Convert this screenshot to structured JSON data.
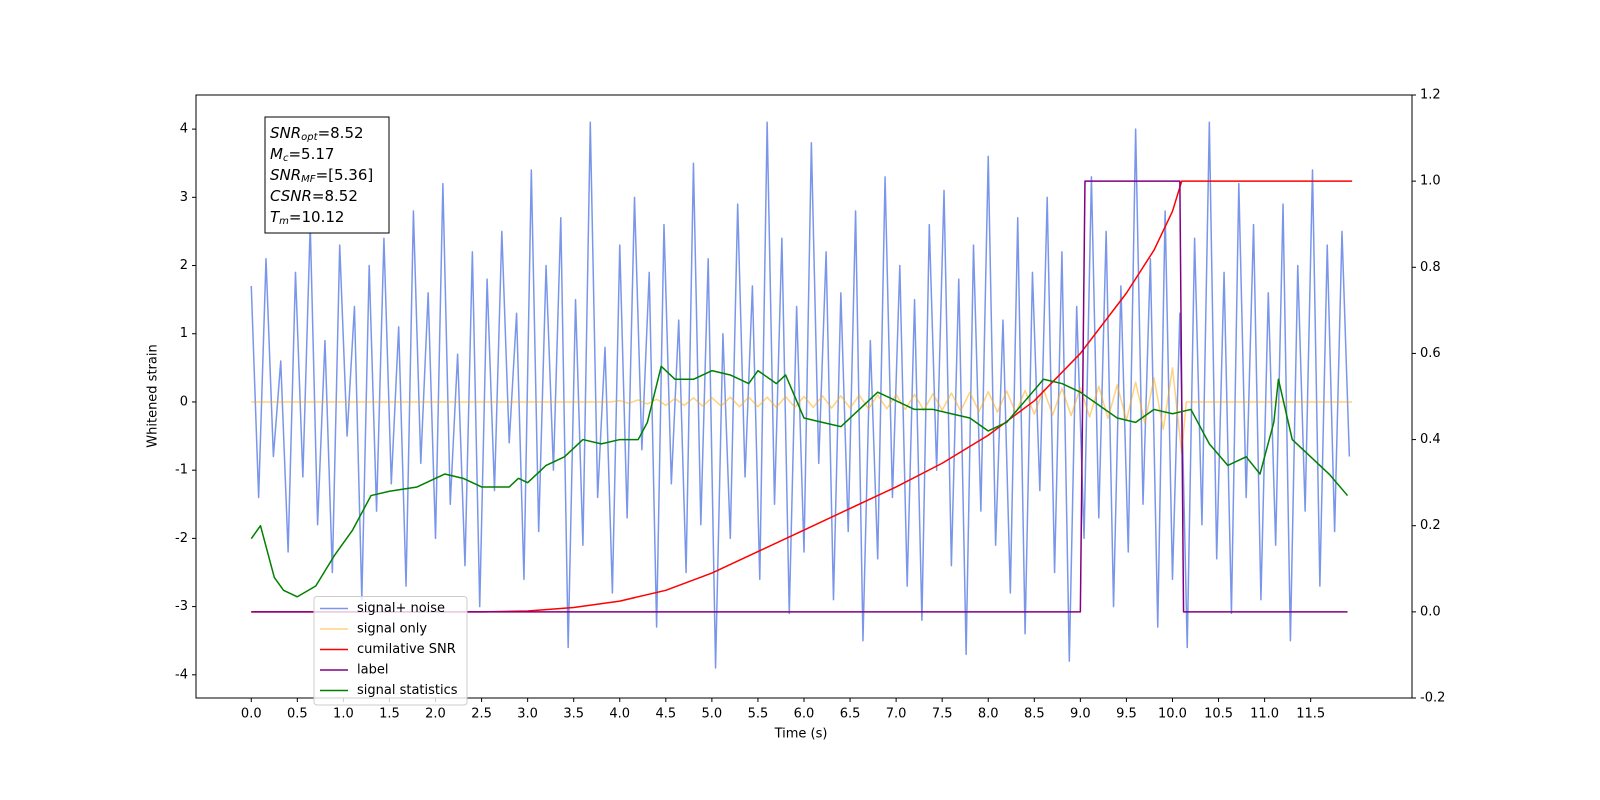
{
  "chart_data": {
    "type": "line",
    "xlabel": "Time (s)",
    "ylabel": "Whitened strain",
    "xlim": [
      -0.6,
      12.6
    ],
    "ylim": [
      -4.34,
      4.5
    ],
    "y2lim": [
      -0.2,
      1.2
    ],
    "xticks": [
      {
        "value": 0,
        "label": "0.0"
      },
      {
        "value": 0.5,
        "label": "0.5"
      },
      {
        "value": 1,
        "label": "1.0"
      },
      {
        "value": 1.5,
        "label": "1.5"
      },
      {
        "value": 2,
        "label": "2.0"
      },
      {
        "value": 2.5,
        "label": "2.5"
      },
      {
        "value": 3,
        "label": "3.0"
      },
      {
        "value": 3.5,
        "label": "3.5"
      },
      {
        "value": 4,
        "label": "4.0"
      },
      {
        "value": 4.5,
        "label": "4.5"
      },
      {
        "value": 5,
        "label": "5.0"
      },
      {
        "value": 5.5,
        "label": "5.5"
      },
      {
        "value": 6,
        "label": "6.0"
      },
      {
        "value": 6.5,
        "label": "6.5"
      },
      {
        "value": 7,
        "label": "7.0"
      },
      {
        "value": 7.5,
        "label": "7.5"
      },
      {
        "value": 8,
        "label": "8.0"
      },
      {
        "value": 8.5,
        "label": "8.5"
      },
      {
        "value": 9,
        "label": "9.0"
      },
      {
        "value": 9.5,
        "label": "9.5"
      },
      {
        "value": 10,
        "label": "10.0"
      },
      {
        "value": 10.5,
        "label": "10.5"
      },
      {
        "value": 11,
        "label": "11.0"
      },
      {
        "value": 11.5,
        "label": "11.5"
      }
    ],
    "yticks": [
      -4,
      -3,
      -2,
      -1,
      0,
      1,
      2,
      3,
      4
    ],
    "y2ticks": [
      -0.2,
      {
        "value": 0,
        "label": "0.0"
      },
      0.2,
      0.4,
      0.6,
      0.8,
      {
        "value": 1,
        "label": "1.0"
      },
      1.2
    ],
    "grid": false,
    "legend": "lower left",
    "annotation": [
      {
        "symbol": "SNR",
        "sub": "opt",
        "text": "=8.52"
      },
      {
        "symbol": "M",
        "sub": "c",
        "text": "=5.17"
      },
      {
        "symbol": "SNR",
        "sub": "MF",
        "text": "=[5.36]"
      },
      {
        "symbol": "CSNR",
        "text": "=8.52"
      },
      {
        "symbol": "T",
        "sub": "m",
        "text": "=10.12"
      }
    ],
    "series": [
      {
        "name": "signal+ noise",
        "color": "#4169e1",
        "alpha": 0.7,
        "x": [
          0,
          0.08,
          0.16,
          0.24,
          0.32,
          0.4,
          0.48,
          0.56,
          0.64,
          0.72,
          0.8,
          0.88,
          0.96,
          1.04,
          1.12,
          1.2,
          1.28,
          1.36,
          1.44,
          1.52,
          1.6,
          1.68,
          1.76,
          1.84,
          1.92,
          2,
          2.08,
          2.16,
          2.24,
          2.32,
          2.4,
          2.48,
          2.56,
          2.64,
          2.72,
          2.8,
          2.88,
          2.96,
          3.04,
          3.12,
          3.2,
          3.28,
          3.36,
          3.44,
          3.52,
          3.6,
          3.68,
          3.76,
          3.84,
          3.92,
          4,
          4.08,
          4.16,
          4.24,
          4.32,
          4.4,
          4.48,
          4.56,
          4.64,
          4.72,
          4.8,
          4.88,
          4.96,
          5.04,
          5.12,
          5.2,
          5.28,
          5.36,
          5.44,
          5.52,
          5.6,
          5.68,
          5.76,
          5.84,
          5.92,
          6,
          6.08,
          6.16,
          6.24,
          6.32,
          6.4,
          6.48,
          6.56,
          6.64,
          6.72,
          6.8,
          6.88,
          6.96,
          7.04,
          7.12,
          7.2,
          7.28,
          7.36,
          7.44,
          7.52,
          7.6,
          7.68,
          7.76,
          7.84,
          7.92,
          8,
          8.08,
          8.16,
          8.24,
          8.32,
          8.4,
          8.48,
          8.56,
          8.64,
          8.72,
          8.8,
          8.88,
          8.96,
          9.04,
          9.12,
          9.2,
          9.28,
          9.36,
          9.44,
          9.52,
          9.6,
          9.68,
          9.76,
          9.84,
          9.92,
          10,
          10.08,
          10.16,
          10.24,
          10.32,
          10.4,
          10.48,
          10.56,
          10.64,
          10.72,
          10.8,
          10.88,
          10.96,
          11.04,
          11.12,
          11.2,
          11.28,
          11.36,
          11.44,
          11.52,
          11.6,
          11.68,
          11.76,
          11.84,
          11.92
        ],
        "values": [
          1.7,
          -1.4,
          2.1,
          -0.8,
          0.6,
          -2.2,
          1.9,
          -1.1,
          2.6,
          -1.8,
          0.9,
          -2.5,
          2.3,
          -0.5,
          1.4,
          -2.9,
          2.0,
          -1.6,
          2.4,
          -1.2,
          1.1,
          -2.7,
          2.8,
          -0.9,
          1.6,
          -2.0,
          3.2,
          -1.5,
          0.7,
          -2.4,
          2.2,
          -3.0,
          1.8,
          -1.3,
          2.5,
          -0.6,
          1.3,
          -2.6,
          3.4,
          -1.9,
          2.0,
          -1.0,
          2.7,
          -3.6,
          1.5,
          -2.1,
          4.1,
          -1.4,
          0.8,
          -2.8,
          2.3,
          -1.7,
          3.0,
          -0.7,
          1.9,
          -3.3,
          2.6,
          -1.2,
          1.2,
          -2.5,
          3.5,
          -1.8,
          2.1,
          -3.9,
          1.0,
          -2.0,
          2.9,
          -1.1,
          1.7,
          -2.6,
          4.1,
          -1.5,
          2.4,
          -3.1,
          1.4,
          -2.2,
          3.8,
          -0.9,
          2.2,
          -2.9,
          1.6,
          -1.9,
          2.8,
          -3.5,
          0.9,
          -2.3,
          3.3,
          -1.4,
          2.0,
          -2.7,
          1.5,
          -3.2,
          2.6,
          -1.0,
          3.1,
          -2.4,
          1.8,
          -3.7,
          2.3,
          -1.6,
          3.6,
          -2.1,
          1.2,
          -2.8,
          2.7,
          -3.4,
          1.9,
          -1.3,
          3.0,
          -2.5,
          2.2,
          -3.8,
          1.4,
          -2.0,
          3.3,
          -1.7,
          2.5,
          -3.0,
          1.7,
          -2.2,
          4.0,
          -1.5,
          2.1,
          -3.3,
          2.8,
          -2.6,
          1.3,
          -3.6,
          2.4,
          -1.8,
          4.1,
          -2.3,
          1.9,
          -3.1,
          3.2,
          -1.4,
          2.6,
          -2.9,
          1.6,
          -2.1,
          2.9,
          -3.5,
          2.0,
          -1.6,
          3.4,
          -2.7,
          2.3,
          -1.9,
          2.5,
          -0.8
        ]
      },
      {
        "name": "signal only",
        "color": "#ffa500",
        "alpha": 0.5,
        "x": [
          0,
          3.9,
          4,
          4.1,
          4.2,
          4.3,
          4.4,
          4.5,
          4.6,
          4.7,
          4.8,
          4.9,
          5,
          5.1,
          5.2,
          5.3,
          5.4,
          5.5,
          5.6,
          5.7,
          5.8,
          5.9,
          6,
          6.1,
          6.2,
          6.3,
          6.4,
          6.5,
          6.6,
          6.7,
          6.8,
          6.9,
          7,
          7.1,
          7.2,
          7.3,
          7.4,
          7.5,
          7.6,
          7.7,
          7.8,
          7.9,
          8,
          8.1,
          8.2,
          8.3,
          8.4,
          8.5,
          8.6,
          8.7,
          8.8,
          8.9,
          9,
          9.1,
          9.2,
          9.3,
          9.4,
          9.5,
          9.6,
          9.7,
          9.8,
          9.9,
          10,
          10.1,
          10.15,
          11.95
        ],
        "values": [
          0,
          0,
          0.02,
          -0.02,
          0.03,
          -0.03,
          0.04,
          -0.05,
          0.05,
          -0.05,
          0.06,
          -0.06,
          0.06,
          -0.06,
          0.07,
          -0.07,
          0.07,
          -0.07,
          0.07,
          -0.08,
          0.08,
          -0.08,
          0.08,
          -0.08,
          0.09,
          -0.09,
          0.09,
          -0.09,
          0.1,
          -0.1,
          0.1,
          -0.1,
          0.11,
          -0.11,
          0.11,
          -0.12,
          0.12,
          -0.12,
          0.13,
          -0.13,
          0.14,
          -0.14,
          0.15,
          -0.15,
          0.16,
          -0.16,
          0.17,
          -0.18,
          0.18,
          -0.19,
          0.2,
          -0.2,
          0.21,
          -0.22,
          0.23,
          -0.24,
          0.25,
          -0.27,
          0.29,
          -0.31,
          0.35,
          -0.4,
          0.5,
          -0.75,
          0,
          0
        ]
      },
      {
        "name": "cumilative SNR",
        "color": "#ff0000",
        "axis": "y2",
        "x": [
          0,
          2.5,
          3,
          3.5,
          4,
          4.5,
          5,
          5.5,
          6,
          6.5,
          7,
          7.5,
          8,
          8.5,
          9,
          9.5,
          9.8,
          10,
          10.1,
          11.95
        ],
        "values": [
          0,
          0,
          0.002,
          0.01,
          0.025,
          0.05,
          0.09,
          0.14,
          0.19,
          0.24,
          0.29,
          0.345,
          0.41,
          0.49,
          0.6,
          0.74,
          0.84,
          0.93,
          1,
          1
        ]
      },
      {
        "name": "label",
        "color": "#800080",
        "axis": "y2",
        "x": [
          0,
          9,
          9.05,
          10.08,
          10.12,
          11.9
        ],
        "values": [
          0,
          0,
          1,
          1,
          0,
          0
        ]
      },
      {
        "name": "signal statistics",
        "color": "#008000",
        "axis": "y2",
        "x": [
          0,
          0.1,
          0.25,
          0.35,
          0.5,
          0.7,
          0.9,
          1.1,
          1.3,
          1.5,
          1.8,
          2,
          2.1,
          2.3,
          2.5,
          2.8,
          2.9,
          3,
          3.2,
          3.4,
          3.6,
          3.8,
          4,
          4.2,
          4.3,
          4.45,
          4.6,
          4.8,
          5,
          5.2,
          5.4,
          5.5,
          5.7,
          5.8,
          6,
          6.2,
          6.4,
          6.6,
          6.8,
          7,
          7.2,
          7.4,
          7.6,
          7.8,
          8,
          8.2,
          8.4,
          8.6,
          8.8,
          9,
          9.2,
          9.4,
          9.6,
          9.8,
          10,
          10.2,
          10.4,
          10.6,
          10.8,
          10.95,
          11.1,
          11.15,
          11.3,
          11.5,
          11.7,
          11.9
        ],
        "values": [
          0.17,
          0.2,
          0.08,
          0.05,
          0.035,
          0.06,
          0.13,
          0.19,
          0.27,
          0.28,
          0.29,
          0.31,
          0.32,
          0.31,
          0.29,
          0.29,
          0.31,
          0.3,
          0.34,
          0.36,
          0.4,
          0.39,
          0.4,
          0.4,
          0.44,
          0.57,
          0.54,
          0.54,
          0.56,
          0.55,
          0.53,
          0.56,
          0.53,
          0.55,
          0.45,
          0.44,
          0.43,
          0.47,
          0.51,
          0.49,
          0.47,
          0.47,
          0.46,
          0.45,
          0.42,
          0.44,
          0.49,
          0.54,
          0.53,
          0.51,
          0.48,
          0.45,
          0.44,
          0.47,
          0.46,
          0.47,
          0.39,
          0.34,
          0.36,
          0.32,
          0.44,
          0.54,
          0.4,
          0.36,
          0.32,
          0.27
        ]
      }
    ]
  }
}
